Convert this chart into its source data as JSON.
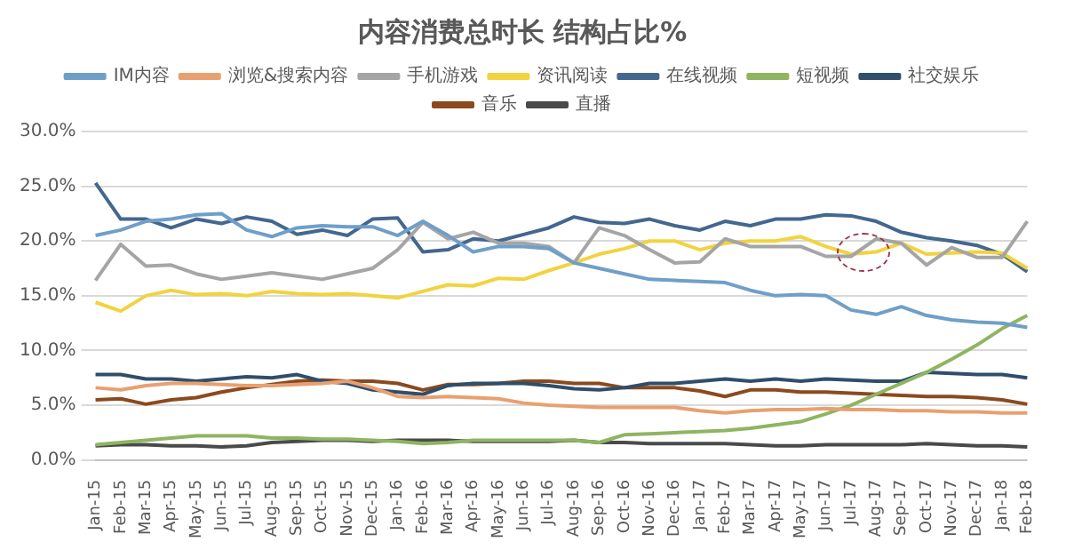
{
  "chart_data": {
    "type": "line",
    "title": "内容消费总时长 结构占比%",
    "categories": [
      "Jan-15",
      "Feb-15",
      "Mar-15",
      "Apr-15",
      "May-15",
      "Jun-15",
      "Jul-15",
      "Aug-15",
      "Sep-15",
      "Oct-15",
      "Nov-15",
      "Dec-15",
      "Jan-16",
      "Feb-16",
      "Mar-16",
      "Apr-16",
      "May-16",
      "Jun-16",
      "Jul-16",
      "Aug-16",
      "Sep-16",
      "Oct-16",
      "Nov-16",
      "Dec-16",
      "Jan-17",
      "Feb-17",
      "Mar-17",
      "Apr-17",
      "May-17",
      "Jun-17",
      "Jul-17",
      "Aug-17",
      "Sep-17",
      "Oct-17",
      "Nov-17",
      "Dec-17",
      "Jan-18",
      "Feb-18"
    ],
    "series": [
      {
        "name": "IM内容",
        "color": "#6f9fc8",
        "values": [
          20.5,
          21,
          21.8,
          22,
          22.4,
          22.5,
          21,
          20.4,
          21.2,
          21.4,
          21.3,
          21.3,
          20.5,
          21.8,
          20.5,
          19.0,
          19.5,
          19.5,
          19.3,
          18.0,
          17.5,
          17.0,
          16.5,
          16.4,
          16.3,
          16.2,
          15.5,
          15.0,
          15.1,
          15.0,
          13.7,
          13.3,
          14.0,
          13.2,
          12.8,
          12.6,
          12.5,
          12.1
        ]
      },
      {
        "name": "浏览&搜索内容",
        "color": "#e8a070",
        "values": [
          6.6,
          6.4,
          6.8,
          7,
          7,
          6.9,
          6.8,
          6.8,
          6.9,
          7.0,
          7.2,
          6.6,
          5.8,
          5.7,
          5.8,
          5.7,
          5.6,
          5.2,
          5.0,
          4.9,
          4.8,
          4.8,
          4.8,
          4.8,
          4.5,
          4.3,
          4.5,
          4.6,
          4.6,
          4.7,
          4.6,
          4.6,
          4.5,
          4.5,
          4.4,
          4.4,
          4.3,
          4.3
        ]
      },
      {
        "name": "手机游戏",
        "color": "#a5a5a5",
        "values": [
          16.4,
          19.7,
          17.7,
          17.8,
          17,
          16.5,
          16.8,
          17.1,
          16.8,
          16.5,
          17,
          17.5,
          19.2,
          21.7,
          20.2,
          20.8,
          19.8,
          19.8,
          19.5,
          18,
          21.2,
          20.5,
          19.2,
          18,
          18.1,
          20.2,
          19.5,
          19.5,
          19.5,
          18.6,
          18.6,
          20.2,
          19.8,
          17.8,
          19.4,
          18.5,
          18.5,
          21.8
        ]
      },
      {
        "name": "资讯阅读",
        "color": "#f2d33f",
        "values": [
          14.4,
          13.6,
          15,
          15.5,
          15.1,
          15.2,
          15,
          15.4,
          15.2,
          15.1,
          15.2,
          15,
          14.8,
          15.4,
          16,
          15.9,
          16.6,
          16.5,
          17.3,
          18,
          18.8,
          19.3,
          20,
          20,
          19.2,
          19.8,
          20,
          20,
          20.4,
          19.5,
          18.8,
          19,
          19.8,
          18.8,
          18.9,
          19,
          18.9,
          17.5
        ]
      },
      {
        "name": "在线视频",
        "color": "#44678f",
        "values": [
          25.3,
          22,
          22,
          21.2,
          22,
          21.6,
          22.2,
          21.8,
          20.6,
          21,
          20.5,
          22,
          22.1,
          19,
          19.2,
          20.2,
          20,
          20.6,
          21.2,
          22.2,
          21.7,
          21.6,
          22,
          21.4,
          21,
          21.8,
          21.4,
          22,
          22,
          22.4,
          22.3,
          21.8,
          20.8,
          20.3,
          20,
          19.6,
          18.8,
          17.2
        ]
      },
      {
        "name": "短视频",
        "color": "#8fb462",
        "values": [
          1.4,
          1.6,
          1.8,
          2.0,
          2.2,
          2.2,
          2.2,
          2.0,
          2.0,
          1.9,
          1.9,
          1.8,
          1.7,
          1.5,
          1.6,
          1.8,
          1.8,
          1.8,
          1.8,
          1.8,
          1.6,
          2.3,
          2.4,
          2.5,
          2.6,
          2.7,
          2.9,
          3.2,
          3.5,
          4.2,
          5.0,
          6.0,
          7.0,
          8.0,
          9.2,
          10.5,
          12.0,
          13.2
        ]
      },
      {
        "name": "社交娱乐",
        "color": "#2f4e6b",
        "values": [
          7.8,
          7.8,
          7.4,
          7.4,
          7.2,
          7.4,
          7.6,
          7.5,
          7.8,
          7.2,
          7,
          6.4,
          6.2,
          6,
          6.8,
          7,
          7,
          7,
          6.8,
          6.5,
          6.4,
          6.6,
          7.0,
          7.0,
          7.2,
          7.4,
          7.2,
          7.4,
          7.2,
          7.4,
          7.3,
          7.2,
          7.2,
          8.0,
          7.9,
          7.8,
          7.8,
          7.5
        ]
      },
      {
        "name": "音乐",
        "color": "#8b4a1e",
        "values": [
          5.5,
          5.6,
          5.1,
          5.5,
          5.7,
          6.2,
          6.6,
          6.9,
          7.2,
          7.3,
          7.2,
          7.2,
          7.0,
          6.4,
          6.9,
          6.9,
          7.0,
          7.2,
          7.2,
          7.0,
          7.0,
          6.6,
          6.6,
          6.6,
          6.3,
          5.8,
          6.4,
          6.4,
          6.2,
          6.2,
          6.1,
          6.0,
          5.9,
          5.8,
          5.8,
          5.7,
          5.5,
          5.1
        ]
      },
      {
        "name": "直播",
        "color": "#4a4a4a",
        "values": [
          1.3,
          1.4,
          1.4,
          1.3,
          1.3,
          1.2,
          1.3,
          1.6,
          1.7,
          1.8,
          1.8,
          1.7,
          1.8,
          1.8,
          1.8,
          1.7,
          1.7,
          1.7,
          1.7,
          1.8,
          1.6,
          1.6,
          1.5,
          1.5,
          1.5,
          1.5,
          1.4,
          1.3,
          1.3,
          1.4,
          1.4,
          1.4,
          1.4,
          1.5,
          1.4,
          1.3,
          1.3,
          1.2
        ]
      }
    ],
    "ylim": [
      0,
      30
    ],
    "yticks": [
      {
        "value": 0,
        "label": "0.0%"
      },
      {
        "value": 5,
        "label": "5.0%"
      },
      {
        "value": 10,
        "label": "10.0%"
      },
      {
        "value": 15,
        "label": "15.0%"
      },
      {
        "value": 20,
        "label": "20.0%"
      },
      {
        "value": 25,
        "label": "25.0%"
      },
      {
        "value": 30,
        "label": "30.0%"
      }
    ],
    "grid": "y",
    "legend": "top",
    "marker": "none",
    "line_style": "solid"
  }
}
